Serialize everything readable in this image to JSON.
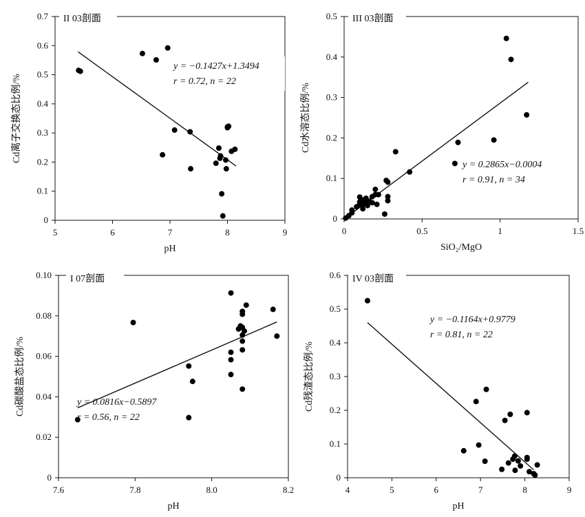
{
  "chart_data": [
    {
      "type": "scatter",
      "panel_label": "II 03剖面",
      "xlabel": "pH",
      "ylabel": "Cd离子交换态比例/%",
      "xlim": [
        5,
        9
      ],
      "ylim": [
        0,
        0.7
      ],
      "xticks": [
        "5",
        "6",
        "7",
        "8",
        "9"
      ],
      "yticks": [
        "0",
        "0.1",
        "0.2",
        "0.3",
        "0.4",
        "0.5",
        "0.6",
        "0.7"
      ],
      "points": [
        {
          "x": 5.41,
          "y": 0.515
        },
        {
          "x": 5.44,
          "y": 0.512
        },
        {
          "x": 6.52,
          "y": 0.573
        },
        {
          "x": 6.76,
          "y": 0.551
        },
        {
          "x": 6.96,
          "y": 0.592
        },
        {
          "x": 6.87,
          "y": 0.225
        },
        {
          "x": 7.08,
          "y": 0.31
        },
        {
          "x": 7.35,
          "y": 0.304
        },
        {
          "x": 7.36,
          "y": 0.177
        },
        {
          "x": 7.8,
          "y": 0.196
        },
        {
          "x": 7.85,
          "y": 0.248
        },
        {
          "x": 7.87,
          "y": 0.213
        },
        {
          "x": 7.88,
          "y": 0.221
        },
        {
          "x": 7.9,
          "y": 0.091
        },
        {
          "x": 7.92,
          "y": 0.015
        },
        {
          "x": 7.97,
          "y": 0.207
        },
        {
          "x": 7.98,
          "y": 0.177
        },
        {
          "x": 8.0,
          "y": 0.321
        },
        {
          "x": 8.02,
          "y": 0.323
        },
        {
          "x": 8.07,
          "y": 0.237
        },
        {
          "x": 8.13,
          "y": 0.244
        },
        {
          "x": 8.0,
          "y": 0.318
        }
      ],
      "fit": {
        "slope": -0.1427,
        "intercept": 1.3494,
        "x_range": [
          5.4,
          8.15
        ]
      },
      "annotation": {
        "line1": "y = −0.1427x+1.3494",
        "line2": "r = 0.72, n = 22"
      }
    },
    {
      "type": "scatter",
      "panel_label": "III 03剖面",
      "xlabel": "SiO₂/MgO",
      "ylabel": "Cd水溶态比例/%",
      "xlim": [
        0,
        1.5
      ],
      "ylim": [
        0,
        0.5
      ],
      "xticks": [
        "0",
        "0.5",
        "1",
        "1.5"
      ],
      "yticks": [
        "0",
        "0.1",
        "0.2",
        "0.3",
        "0.4",
        "0.5"
      ],
      "points": [
        {
          "x": 0.01,
          "y": 0.002
        },
        {
          "x": 0.03,
          "y": 0.008
        },
        {
          "x": 0.05,
          "y": 0.015
        },
        {
          "x": 0.05,
          "y": 0.022
        },
        {
          "x": 0.08,
          "y": 0.03
        },
        {
          "x": 0.1,
          "y": 0.036
        },
        {
          "x": 0.1,
          "y": 0.042
        },
        {
          "x": 0.1,
          "y": 0.054
        },
        {
          "x": 0.11,
          "y": 0.048
        },
        {
          "x": 0.12,
          "y": 0.025
        },
        {
          "x": 0.12,
          "y": 0.035
        },
        {
          "x": 0.13,
          "y": 0.04
        },
        {
          "x": 0.14,
          "y": 0.051
        },
        {
          "x": 0.15,
          "y": 0.033
        },
        {
          "x": 0.16,
          "y": 0.044
        },
        {
          "x": 0.18,
          "y": 0.04
        },
        {
          "x": 0.18,
          "y": 0.055
        },
        {
          "x": 0.2,
          "y": 0.06
        },
        {
          "x": 0.2,
          "y": 0.073
        },
        {
          "x": 0.21,
          "y": 0.036
        },
        {
          "x": 0.22,
          "y": 0.06
        },
        {
          "x": 0.26,
          "y": 0.012
        },
        {
          "x": 0.28,
          "y": 0.045
        },
        {
          "x": 0.28,
          "y": 0.055
        },
        {
          "x": 0.27,
          "y": 0.095
        },
        {
          "x": 0.28,
          "y": 0.091
        },
        {
          "x": 0.33,
          "y": 0.166
        },
        {
          "x": 0.42,
          "y": 0.116
        },
        {
          "x": 0.71,
          "y": 0.137
        },
        {
          "x": 0.73,
          "y": 0.189
        },
        {
          "x": 0.96,
          "y": 0.195
        },
        {
          "x": 1.04,
          "y": 0.446
        },
        {
          "x": 1.07,
          "y": 0.394
        },
        {
          "x": 1.17,
          "y": 0.257
        }
      ],
      "fit": {
        "slope": 0.2865,
        "intercept": -0.0004,
        "x_range": [
          0.0,
          1.18
        ]
      },
      "annotation": {
        "line1": "y = 0.2865x−0.0004",
        "line2": "r = 0.91, n = 34"
      }
    },
    {
      "type": "scatter",
      "panel_label": "I 07剖面",
      "xlabel": "pH",
      "ylabel": "Cd碳酸盐态比例/%",
      "xlim": [
        7.6,
        8.2
      ],
      "ylim": [
        0,
        0.1
      ],
      "xticks": [
        "7.6",
        "7.8",
        "8.0",
        "8.2"
      ],
      "yticks": [
        "0",
        "0.02",
        "0.04",
        "0.06",
        "0.08",
        "0.10"
      ],
      "points": [
        {
          "x": 7.65,
          "y": 0.0287
        },
        {
          "x": 7.795,
          "y": 0.0767
        },
        {
          "x": 7.94,
          "y": 0.0552
        },
        {
          "x": 7.95,
          "y": 0.0476
        },
        {
          "x": 7.94,
          "y": 0.0297
        },
        {
          "x": 8.05,
          "y": 0.0913
        },
        {
          "x": 8.05,
          "y": 0.062
        },
        {
          "x": 8.05,
          "y": 0.0583
        },
        {
          "x": 8.05,
          "y": 0.051
        },
        {
          "x": 8.07,
          "y": 0.0735
        },
        {
          "x": 8.075,
          "y": 0.075
        },
        {
          "x": 8.08,
          "y": 0.0808
        },
        {
          "x": 8.08,
          "y": 0.0822
        },
        {
          "x": 8.08,
          "y": 0.0743
        },
        {
          "x": 8.08,
          "y": 0.0705
        },
        {
          "x": 8.08,
          "y": 0.0675
        },
        {
          "x": 8.08,
          "y": 0.0632
        },
        {
          "x": 8.08,
          "y": 0.0438
        },
        {
          "x": 8.09,
          "y": 0.0853
        },
        {
          "x": 8.16,
          "y": 0.0832
        },
        {
          "x": 8.17,
          "y": 0.07
        },
        {
          "x": 8.085,
          "y": 0.0725
        }
      ],
      "fit": {
        "slope": 0.0816,
        "intercept": -0.5897,
        "x_range": [
          7.65,
          8.17
        ]
      },
      "annotation": {
        "line1": "y = 0.0816x−0.5897",
        "line2": "r = 0.56, n = 22"
      }
    },
    {
      "type": "scatter",
      "panel_label": "IV 03剖面",
      "xlabel": "pH",
      "ylabel": "Cd残渣态比例/%",
      "xlim": [
        4,
        9
      ],
      "ylim": [
        0,
        0.6
      ],
      "xticks": [
        "4",
        "5",
        "6",
        "7",
        "8",
        "9"
      ],
      "yticks": [
        "0",
        "0.1",
        "0.2",
        "0.3",
        "0.4",
        "0.5",
        "0.6"
      ],
      "points": [
        {
          "x": 4.45,
          "y": 0.525
        },
        {
          "x": 6.62,
          "y": 0.08
        },
        {
          "x": 6.9,
          "y": 0.226
        },
        {
          "x": 6.96,
          "y": 0.097
        },
        {
          "x": 7.1,
          "y": 0.049
        },
        {
          "x": 7.13,
          "y": 0.262
        },
        {
          "x": 7.48,
          "y": 0.025
        },
        {
          "x": 7.55,
          "y": 0.17
        },
        {
          "x": 7.63,
          "y": 0.044
        },
        {
          "x": 7.67,
          "y": 0.188
        },
        {
          "x": 7.73,
          "y": 0.055
        },
        {
          "x": 7.77,
          "y": 0.064
        },
        {
          "x": 7.78,
          "y": 0.022
        },
        {
          "x": 7.85,
          "y": 0.05
        },
        {
          "x": 7.9,
          "y": 0.035
        },
        {
          "x": 8.05,
          "y": 0.055
        },
        {
          "x": 8.05,
          "y": 0.06
        },
        {
          "x": 8.05,
          "y": 0.193
        },
        {
          "x": 8.1,
          "y": 0.018
        },
        {
          "x": 8.2,
          "y": 0.012
        },
        {
          "x": 8.23,
          "y": 0.008
        },
        {
          "x": 8.28,
          "y": 0.038
        }
      ],
      "fit": {
        "slope": -0.1164,
        "intercept": 0.9779,
        "x_range": [
          4.45,
          8.2
        ]
      },
      "annotation": {
        "line1": "y = −0.1164x+0.9779",
        "line2": "r = 0.81, n = 22"
      }
    }
  ]
}
